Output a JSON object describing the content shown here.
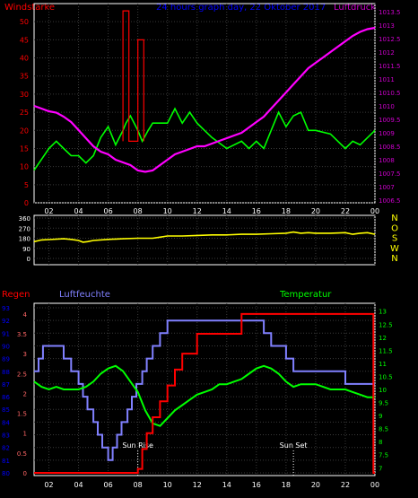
{
  "header": {
    "left_title": "Windstärke",
    "center_title": "24 hours graph day, 22 Oktober 2017",
    "right_title": "Luftdruck"
  },
  "colors": {
    "wind": "#00ff00",
    "pressure": "#ff00ff",
    "direction": "#ffff00",
    "rain": "#ff0000",
    "humidity": "#8080ff",
    "temperature": "#00ff00",
    "grid": "#3a3a3a",
    "axis": "#ffffff",
    "left_title": "#ff0000",
    "center_title": "#0000ff",
    "right_title": "#cc00cc",
    "rain_axis": "#0000ff",
    "humidity_axis": "#0000ff",
    "temperature_axis": "#00ff00",
    "direction_letters": "#ffff00",
    "annotation": "#ffffff"
  },
  "chart_data": [
    {
      "type": "line",
      "title": "Windstärke / Luftdruck",
      "xticks": [
        "02",
        "04",
        "06",
        "08",
        "10",
        "12",
        "14",
        "16",
        "18",
        "20",
        "22",
        "00"
      ],
      "xlim": [
        1,
        24
      ],
      "ylim": [
        0,
        55
      ],
      "y2lim": [
        1006.4,
        1013.8
      ],
      "yticks": [
        0,
        5,
        10,
        15,
        20,
        25,
        30,
        35,
        40,
        45,
        50
      ],
      "y2ticks": [
        "1006.5",
        "1007",
        "1007.5",
        "1008",
        "1008.5",
        "1009",
        "1009.5",
        "1010",
        "1010.5",
        "1011",
        "1011.5",
        "1012",
        "1012.5",
        "1013",
        "1013.5"
      ],
      "series": [
        {
          "name": "Windstärke",
          "axis": "left",
          "x": [
            1.0,
            1.5,
            2.0,
            2.5,
            3.0,
            3.5,
            4.0,
            4.5,
            5.0,
            5.5,
            6.0,
            6.3,
            6.5,
            7.0,
            7.2,
            7.5,
            8.0,
            8.3,
            8.7,
            9.0,
            10.0,
            10.5,
            11.0,
            11.5,
            12.0,
            12.5,
            13.0,
            14.0,
            15.0,
            15.5,
            16.0,
            16.5,
            17.0,
            17.5,
            18.0,
            18.5,
            19.0,
            19.5,
            20.0,
            21.0,
            22.0,
            22.5,
            23.0,
            24.0
          ],
          "y": [
            9,
            12,
            15,
            17,
            15,
            13,
            13,
            11,
            13,
            18,
            21,
            18,
            16,
            20,
            22,
            24,
            20,
            17,
            20,
            22,
            22,
            26,
            22,
            25,
            22,
            20,
            18,
            15,
            17,
            15,
            17,
            15,
            20,
            25,
            21,
            24,
            25,
            20,
            20,
            19,
            15,
            17,
            16,
            20
          ]
        },
        {
          "name": "Wind Böen",
          "axis": "left",
          "x": [
            7.0,
            7.0,
            7.4,
            7.4,
            8.0,
            8.0,
            8.4,
            8.4
          ],
          "y": [
            17,
            53,
            53,
            17,
            17,
            45,
            45,
            17
          ]
        },
        {
          "name": "Luftdruck",
          "axis": "right",
          "x": [
            1.0,
            1.5,
            2.0,
            2.5,
            3.0,
            3.5,
            4.0,
            4.5,
            5.0,
            5.5,
            6.0,
            6.5,
            7.0,
            7.5,
            8.0,
            8.5,
            9.0,
            9.5,
            10.0,
            10.5,
            11.0,
            11.5,
            12.0,
            12.5,
            13.0,
            13.5,
            14.0,
            14.5,
            15.0,
            15.5,
            16.0,
            16.5,
            17.0,
            17.5,
            18.0,
            18.5,
            19.0,
            19.5,
            20.0,
            20.5,
            21.0,
            21.5,
            22.0,
            22.5,
            23.0,
            23.5,
            24.0
          ],
          "y": [
            1010.0,
            1009.9,
            1009.8,
            1009.75,
            1009.6,
            1009.4,
            1009.1,
            1008.8,
            1008.5,
            1008.3,
            1008.2,
            1008.0,
            1007.9,
            1007.8,
            1007.6,
            1007.55,
            1007.6,
            1007.8,
            1008.0,
            1008.2,
            1008.3,
            1008.4,
            1008.5,
            1008.5,
            1008.6,
            1008.7,
            1008.8,
            1008.9,
            1009.0,
            1009.2,
            1009.4,
            1009.6,
            1009.9,
            1010.2,
            1010.5,
            1010.8,
            1011.1,
            1011.4,
            1011.6,
            1011.8,
            1012.0,
            1012.2,
            1012.4,
            1012.6,
            1012.75,
            1012.85,
            1012.9
          ]
        }
      ]
    },
    {
      "type": "line",
      "title": "Windrichtung",
      "xlim": [
        1,
        24
      ],
      "ylim": [
        0,
        360
      ],
      "yticks": [
        "0",
        "90",
        "180",
        "270",
        "360"
      ],
      "direction_letters": [
        "N",
        "W",
        "S",
        "O",
        "N"
      ],
      "series": [
        {
          "name": "Windrichtung",
          "x": [
            1.0,
            1.5,
            2.0,
            3.0,
            3.5,
            4.0,
            4.3,
            4.6,
            5.0,
            6.0,
            7.0,
            8.0,
            9.0,
            9.5,
            10.0,
            11.0,
            12.0,
            13.0,
            14.0,
            15.0,
            16.0,
            17.0,
            18.0,
            18.5,
            19.0,
            19.5,
            20.0,
            21.0,
            22.0,
            22.5,
            23.0,
            23.5,
            24.0
          ],
          "y": [
            150,
            165,
            168,
            175,
            170,
            160,
            145,
            150,
            160,
            170,
            175,
            180,
            180,
            190,
            200,
            200,
            205,
            210,
            210,
            215,
            215,
            220,
            225,
            235,
            225,
            230,
            225,
            225,
            230,
            215,
            225,
            230,
            215
          ]
        }
      ]
    },
    {
      "type": "line",
      "title": "Regen / Luftfeuchte / Temperatur",
      "labels": {
        "rain": "Regen",
        "humidity": "Luftfeuchte",
        "temperature": "Temperatur"
      },
      "annotations": [
        {
          "text": "Sun Rise",
          "x": 8.0
        },
        {
          "text": "Sun Set",
          "x": 18.5
        }
      ],
      "xlim": [
        1,
        24
      ],
      "humidity_lim": [
        80,
        93
      ],
      "rain_lim": [
        0,
        4.2
      ],
      "temperature_lim": [
        6.7,
        13.3
      ],
      "humidity_ticks": [
        80,
        81,
        82,
        83,
        84,
        85,
        86,
        87,
        88,
        89,
        90,
        91,
        92,
        93
      ],
      "rain_ticks": [
        "0",
        "0.5",
        "1",
        "1.5",
        "2",
        "2.5",
        "3",
        "3.5",
        "4"
      ],
      "temperature_ticks": [
        "7",
        "7.5",
        "8",
        "8.5",
        "9",
        "9.5",
        "10",
        "10.5",
        "11",
        "11.5",
        "12",
        "12.5",
        "13"
      ],
      "series": [
        {
          "name": "Luftfeuchte",
          "axis": "humidity",
          "x": [
            1.0,
            1.3,
            1.3,
            1.6,
            1.6,
            2.0,
            2.0,
            3.0,
            3.0,
            3.5,
            3.5,
            4.0,
            4.0,
            4.3,
            4.3,
            4.6,
            4.6,
            5.0,
            5.0,
            5.3,
            5.3,
            5.6,
            5.6,
            6.0,
            6.0,
            6.3,
            6.3,
            6.6,
            6.6,
            6.9,
            6.9,
            7.3,
            7.3,
            7.6,
            7.6,
            7.9,
            7.9,
            8.3,
            8.3,
            8.6,
            8.6,
            9.0,
            9.0,
            9.5,
            9.5,
            10.0,
            10.0,
            10.5,
            10.5,
            11.0,
            11.0,
            16.0,
            16.0,
            16.5,
            16.5,
            17.0,
            17.0,
            18.0,
            18.0,
            18.5,
            18.5,
            22.0,
            22.0,
            24.0
          ],
          "y": [
            88,
            88,
            89,
            89,
            90,
            90,
            90,
            90,
            89,
            89,
            88,
            88,
            87,
            87,
            86,
            86,
            85,
            85,
            84,
            84,
            83,
            83,
            82,
            82,
            81,
            81,
            82,
            82,
            83,
            83,
            84,
            84,
            85,
            85,
            86,
            86,
            87,
            87,
            88,
            88,
            89,
            89,
            90,
            90,
            91,
            91,
            92,
            92,
            92,
            92,
            92,
            92,
            92,
            92,
            91,
            91,
            90,
            90,
            89,
            89,
            88,
            88,
            87,
            87
          ]
        },
        {
          "name": "Regen",
          "axis": "rain",
          "x": [
            1.0,
            8.0,
            8.0,
            8.3,
            8.3,
            8.6,
            8.6,
            9.0,
            9.0,
            9.5,
            9.5,
            10.0,
            10.0,
            10.5,
            10.5,
            11.0,
            11.0,
            12.0,
            12.0,
            15.0,
            15.0,
            23.9,
            23.9,
            24.0
          ],
          "y": [
            0,
            0,
            0.1,
            0.1,
            0.6,
            0.6,
            1.0,
            1.0,
            1.4,
            1.4,
            1.8,
            1.8,
            2.2,
            2.2,
            2.6,
            2.6,
            3.0,
            3.0,
            3.5,
            3.5,
            4.0,
            4.0,
            0,
            0
          ]
        },
        {
          "name": "Temperatur",
          "axis": "temperature",
          "x": [
            1.0,
            1.5,
            2.0,
            2.5,
            3.0,
            3.5,
            4.0,
            4.5,
            5.0,
            5.5,
            6.0,
            6.5,
            7.0,
            7.5,
            8.0,
            8.5,
            9.0,
            9.5,
            10.0,
            10.5,
            11.0,
            11.5,
            12.0,
            12.5,
            13.0,
            13.5,
            14.0,
            14.5,
            15.0,
            15.5,
            16.0,
            16.5,
            17.0,
            17.5,
            18.0,
            18.5,
            19.0,
            19.5,
            20.0,
            20.5,
            21.0,
            21.5,
            22.0,
            22.5,
            23.0,
            23.5,
            24.0
          ],
          "y": [
            10.3,
            10.1,
            10.0,
            10.1,
            10.0,
            10.0,
            10.0,
            10.1,
            10.3,
            10.6,
            10.8,
            10.9,
            10.7,
            10.3,
            9.9,
            9.2,
            8.7,
            8.6,
            8.9,
            9.2,
            9.4,
            9.6,
            9.8,
            9.9,
            10.0,
            10.2,
            10.2,
            10.3,
            10.4,
            10.6,
            10.8,
            10.9,
            10.8,
            10.6,
            10.3,
            10.1,
            10.2,
            10.2,
            10.2,
            10.1,
            10.0,
            10.0,
            10.0,
            9.9,
            9.8,
            9.7,
            9.7
          ]
        }
      ]
    }
  ]
}
